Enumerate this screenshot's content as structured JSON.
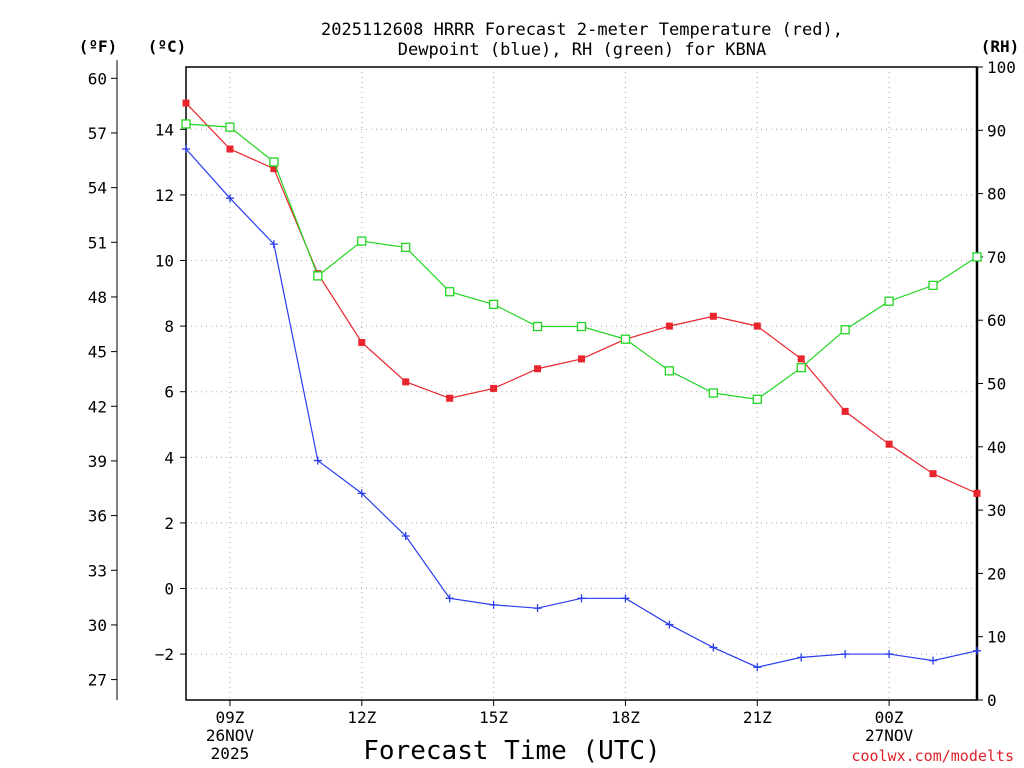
{
  "chart_data": {
    "type": "line",
    "title_line1": "2025112608 HRRR Forecast 2-meter Temperature (red),",
    "title_line2": "Dewpoint (blue), RH (green) for KBNA",
    "xlabel": "Forecast Time (UTC)",
    "credit": "coolwx.com/modelts",
    "units": {
      "fahrenheit": "(ºF)",
      "celsius": "(ºC)",
      "rh": "(RH)"
    },
    "x_hours": [
      8,
      9,
      10,
      11,
      12,
      13,
      14,
      15,
      16,
      17,
      18,
      19,
      20,
      21,
      22,
      23,
      24,
      25,
      26
    ],
    "xlim": [
      8,
      26
    ],
    "x_ticks": [
      {
        "hour": 9,
        "label": "09Z",
        "date": "26NOV",
        "year": "2025"
      },
      {
        "hour": 12,
        "label": "12Z"
      },
      {
        "hour": 15,
        "label": "15Z"
      },
      {
        "hour": 18,
        "label": "18Z"
      },
      {
        "hour": 21,
        "label": "21Z"
      },
      {
        "hour": 24,
        "label": "00Z",
        "date": "27NOV"
      }
    ],
    "celsius_axis": {
      "ylim": [
        -3.4,
        15.9
      ],
      "ticks": [
        -2,
        0,
        2,
        4,
        6,
        8,
        10,
        12,
        14
      ],
      "labels": [
        "−2",
        "0",
        "2",
        "4",
        "6",
        "8",
        "10",
        "12",
        "14"
      ]
    },
    "fahrenheit_axis": {
      "ticks": [
        27,
        30,
        33,
        36,
        39,
        42,
        45,
        48,
        51,
        54,
        57,
        60
      ],
      "labels": [
        "27",
        "30",
        "33",
        "36",
        "39",
        "42",
        "45",
        "48",
        "51",
        "54",
        "57",
        "60"
      ]
    },
    "rh_axis": {
      "ylim": [
        0,
        100
      ],
      "ticks": [
        0,
        10,
        20,
        30,
        40,
        50,
        60,
        70,
        80,
        90,
        100
      ],
      "labels": [
        "0",
        "10",
        "20",
        "30",
        "40",
        "50",
        "60",
        "70",
        "80",
        "90",
        "100"
      ]
    },
    "series": [
      {
        "name": "2-meter Temperature",
        "axis": "celsius",
        "color": "#e8242c",
        "marker": "filled-square",
        "values": [
          14.8,
          13.4,
          12.8,
          9.6,
          7.5,
          6.3,
          5.8,
          6.1,
          6.7,
          7.0,
          7.6,
          8.0,
          8.3,
          8.0,
          7.0,
          5.4,
          4.4,
          3.5,
          2.9
        ]
      },
      {
        "name": "Dewpoint",
        "axis": "celsius",
        "color": "#2a3ef0",
        "marker": "plus",
        "values": [
          13.4,
          11.9,
          10.5,
          3.9,
          2.9,
          1.6,
          -0.3,
          -0.5,
          -0.6,
          -0.3,
          -0.3,
          -1.1,
          -1.8,
          -2.4,
          -2.1,
          -2.0,
          -2.0,
          -2.2,
          -1.9
        ]
      },
      {
        "name": "Relative Humidity",
        "axis": "rh",
        "color": "#22d522",
        "marker": "open-square",
        "values": [
          91,
          90.5,
          85,
          67,
          72.5,
          71.5,
          64.5,
          62.5,
          59,
          59,
          57,
          52,
          48.5,
          47.5,
          52.5,
          58.5,
          63,
          65.5,
          70
        ]
      }
    ]
  }
}
